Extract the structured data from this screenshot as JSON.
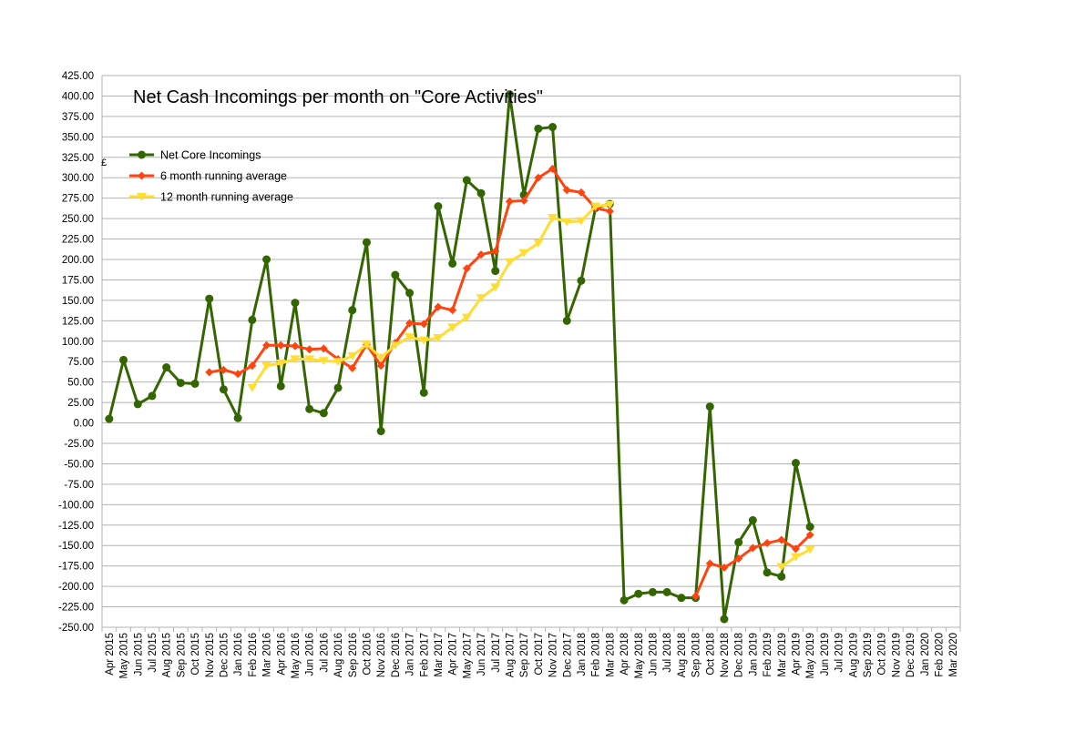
{
  "chart_data": {
    "type": "line",
    "title": "Net Cash Incomings per month on \"Core Activities\"",
    "ylabel": "£",
    "xlabel": "",
    "ylim": [
      -250,
      425
    ],
    "ytick_step": 25,
    "negative_tick_color": "#cc0000",
    "grid": true,
    "legend_placement": "top-left",
    "categories": [
      "Apr 2015",
      "May 2015",
      "Jun 2015",
      "Jul 2015",
      "Aug 2015",
      "Sep 2015",
      "Oct 2015",
      "Nov 2015",
      "Dec 2015",
      "Jan 2016",
      "Feb 2016",
      "Mar 2016",
      "Apr 2016",
      "May 2016",
      "Jun 2016",
      "Jul 2016",
      "Aug 2016",
      "Sep 2016",
      "Oct 2016",
      "Nov 2016",
      "Dec 2016",
      "Jan 2017",
      "Feb 2017",
      "Mar 2017",
      "Apr 2017",
      "May 2017",
      "Jun 2017",
      "Jul 2017",
      "Aug 2017",
      "Sep 2017",
      "Oct 2017",
      "Nov 2017",
      "Dec 2017",
      "Jan 2018",
      "Feb 2018",
      "Mar 2018",
      "Apr 2018",
      "May 2018",
      "Jun 2018",
      "Jul 2018",
      "Aug 2018",
      "Sep 2018",
      "Oct 2018",
      "Nov 2018",
      "Dec 2018",
      "Jan 2019",
      "Feb 2019",
      "Mar 2019",
      "Apr 2019",
      "May 2019",
      "Jun 2019",
      "Jul 2019",
      "Aug 2019",
      "Sep 2019",
      "Oct 2019",
      "Nov 2019",
      "Dec 2019",
      "Jan 2020",
      "Feb 2020",
      "Mar 2020"
    ],
    "series": [
      {
        "name": "Net Core Incomings",
        "color": "#336600",
        "marker": "circle",
        "values": [
          5,
          77,
          23,
          33,
          68,
          49,
          48,
          152,
          41,
          6,
          126,
          200,
          45,
          147,
          17,
          12,
          43,
          138,
          221,
          -10,
          181,
          159,
          37,
          265,
          195,
          297,
          281,
          186,
          402,
          279,
          360,
          362,
          125,
          174,
          263,
          268,
          -217,
          -209,
          -207,
          -207,
          -214,
          -214,
          20,
          -240,
          -146,
          -119,
          -183,
          -188,
          -49,
          -127,
          null,
          null,
          null,
          null,
          null,
          null,
          null,
          null,
          null,
          null
        ]
      },
      {
        "name": "6 month running average",
        "color": "#ff4411",
        "marker": "diamond",
        "values": [
          null,
          null,
          null,
          null,
          null,
          null,
          null,
          62,
          65,
          60,
          70,
          95,
          95,
          94,
          90,
          91,
          78,
          67,
          96,
          70,
          98,
          122,
          121,
          142,
          138,
          189,
          206,
          210,
          271,
          272,
          300,
          311,
          285,
          282,
          263,
          259,
          null,
          null,
          null,
          null,
          null,
          -212,
          -172,
          -177,
          -166,
          -153,
          -147,
          -143,
          -154,
          -137,
          null,
          null,
          null,
          null,
          null,
          null,
          null,
          null,
          null,
          null
        ]
      },
      {
        "name": "12 month running average",
        "color": "#ffdd33",
        "marker": "triangle-down",
        "values": [
          null,
          null,
          null,
          null,
          null,
          null,
          null,
          null,
          null,
          null,
          43,
          70,
          73,
          78,
          78,
          76,
          75,
          82,
          96,
          80,
          95,
          105,
          101,
          104,
          117,
          129,
          153,
          166,
          197,
          208,
          220,
          251,
          246,
          247,
          265,
          267,
          null,
          null,
          null,
          null,
          null,
          null,
          null,
          null,
          null,
          null,
          null,
          -176,
          -164,
          -155,
          null,
          null,
          null,
          null,
          null,
          null,
          null,
          null,
          null,
          null
        ]
      }
    ]
  }
}
